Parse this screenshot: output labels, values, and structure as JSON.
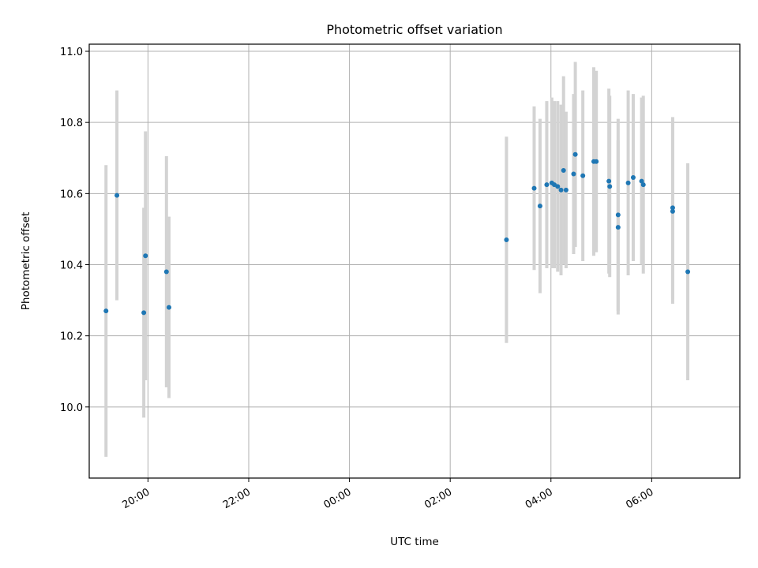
{
  "chart_data": {
    "type": "scatter",
    "title": "Photometric offset variation",
    "xlabel": "UTC time",
    "ylabel": "Photometric offset",
    "x_unit": "UTC time (HH:MM), spanning two days",
    "xlim": [
      "18:50",
      "07:45"
    ],
    "ylim": [
      9.8,
      11.02
    ],
    "x_ticks": [
      "20:00",
      "22:00",
      "00:00",
      "02:00",
      "04:00",
      "06:00"
    ],
    "y_ticks": [
      "10.0",
      "10.2",
      "10.4",
      "10.6",
      "10.8",
      "11.0"
    ],
    "grid": true,
    "point_color": "#1f77b4",
    "errorbar_color": "#d3d3d3",
    "points": [
      {
        "time": "19:10",
        "value": 10.27,
        "err": 0.41
      },
      {
        "time": "19:23",
        "value": 10.595,
        "err": 0.295
      },
      {
        "time": "19:55",
        "value": 10.265,
        "err": 0.295
      },
      {
        "time": "19:57",
        "value": 10.425,
        "err": 0.35
      },
      {
        "time": "20:22",
        "value": 10.38,
        "err": 0.325
      },
      {
        "time": "20:25",
        "value": 10.28,
        "err": 0.255
      },
      {
        "time": "03:07",
        "value": 10.47,
        "err": 0.29
      },
      {
        "time": "03:40",
        "value": 10.615,
        "err": 0.23
      },
      {
        "time": "03:47",
        "value": 10.565,
        "err": 0.245
      },
      {
        "time": "03:55",
        "value": 10.625,
        "err": 0.235
      },
      {
        "time": "04:01",
        "value": 10.63,
        "err": 0.24
      },
      {
        "time": "04:04",
        "value": 10.625,
        "err": 0.235
      },
      {
        "time": "04:08",
        "value": 10.62,
        "err": 0.24
      },
      {
        "time": "04:12",
        "value": 10.61,
        "err": 0.24
      },
      {
        "time": "04:15",
        "value": 10.665,
        "err": 0.265
      },
      {
        "time": "04:18",
        "value": 10.61,
        "err": 0.22
      },
      {
        "time": "04:27",
        "value": 10.655,
        "err": 0.225
      },
      {
        "time": "04:29",
        "value": 10.71,
        "err": 0.26
      },
      {
        "time": "04:38",
        "value": 10.65,
        "err": 0.24
      },
      {
        "time": "04:51",
        "value": 10.69,
        "err": 0.265
      },
      {
        "time": "04:54",
        "value": 10.69,
        "err": 0.255
      },
      {
        "time": "05:09",
        "value": 10.635,
        "err": 0.26
      },
      {
        "time": "05:10",
        "value": 10.62,
        "err": 0.255
      },
      {
        "time": "05:20",
        "value": 10.54,
        "err": 0.27
      },
      {
        "time": "05:20",
        "value": 10.505,
        "err": 0.245
      },
      {
        "time": "05:32",
        "value": 10.63,
        "err": 0.26
      },
      {
        "time": "05:38",
        "value": 10.645,
        "err": 0.235
      },
      {
        "time": "05:48",
        "value": 10.635,
        "err": 0.235
      },
      {
        "time": "05:50",
        "value": 10.625,
        "err": 0.25
      },
      {
        "time": "06:25",
        "value": 10.56,
        "err": 0.255
      },
      {
        "time": "06:25",
        "value": 10.55,
        "err": 0.26
      },
      {
        "time": "06:43",
        "value": 10.38,
        "err": 0.305
      }
    ]
  }
}
